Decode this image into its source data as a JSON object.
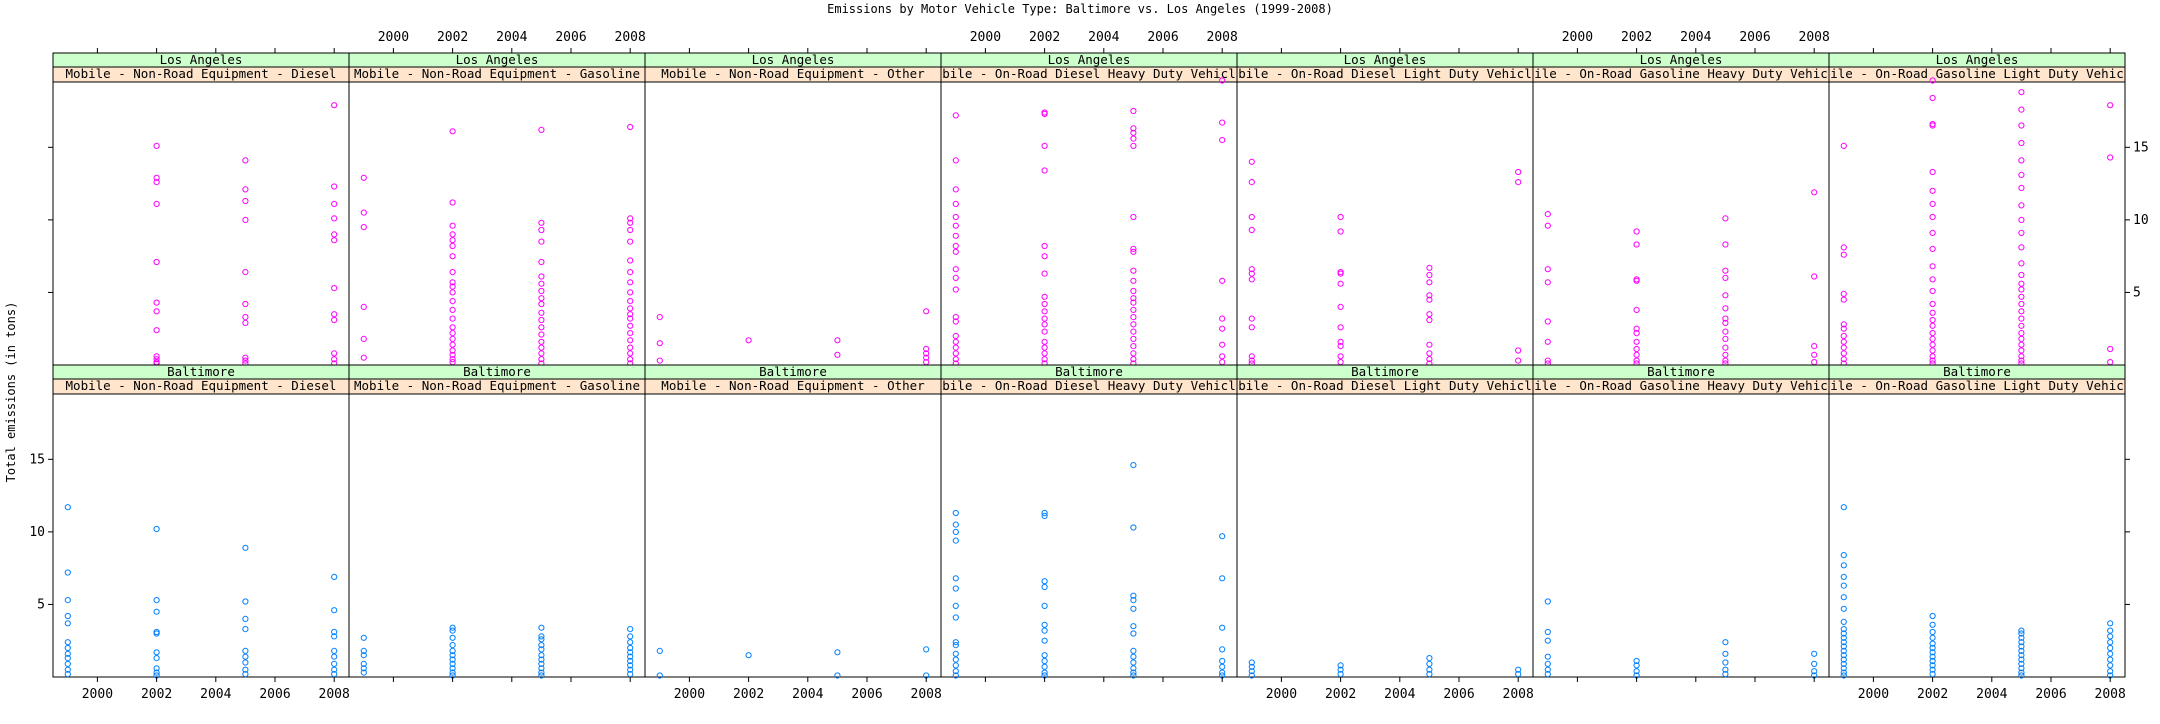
{
  "chart_data": {
    "type": "scatter",
    "title": "Emissions by Motor Vehicle Type:  Baltimore vs. Los Angeles (1999-2008)",
    "xlabel": "",
    "ylabel": "Total emissions (in tons)",
    "xlim": [
      1998.5,
      2008.5
    ],
    "ylim": [
      0,
      19.5
    ],
    "x_ticks": [
      2000,
      2002,
      2004,
      2006,
      2008
    ],
    "y_ticks": [
      5,
      10,
      15
    ],
    "grid": false,
    "legend": "none",
    "colors": {
      "Los Angeles": "#ff00ff",
      "Baltimore": "#0080ff",
      "strip_city": "#ccffcc",
      "strip_type": "#ffe5cc"
    },
    "rows": [
      {
        "city": "Los Angeles",
        "panels": [
          {
            "type": "Mobile - Non-Road Equipment - Diesel",
            "points": {
              "1999": [],
              "2002": [
                15.1,
                12.9,
                12.6,
                11.1,
                7.1,
                4.3,
                3.7,
                2.4,
                0.6,
                0.4,
                0.2,
                0.1
              ],
              "2005": [
                14.1,
                12.1,
                11.3,
                10.0,
                6.4,
                4.2,
                3.3,
                2.9,
                0.5,
                0.3,
                0.1
              ],
              "2008": [
                17.9,
                12.3,
                11.1,
                10.1,
                9.0,
                8.6,
                5.3,
                3.5,
                3.1,
                0.8,
                0.4,
                0.1
              ]
            }
          },
          {
            "type": "Mobile - Non-Road Equipment - Gasoline",
            "points": {
              "1999": [
                12.9,
                10.5,
                9.5,
                4.0,
                1.8,
                0.5
              ],
              "2002": [
                16.1,
                11.2,
                9.6,
                9.0,
                8.6,
                8.2,
                7.5,
                6.4,
                5.7,
                5.4,
                5.0,
                4.4,
                3.8,
                3.2,
                2.6,
                2.2,
                1.8,
                1.4,
                1.0,
                0.7,
                0.4,
                0.2
              ],
              "2005": [
                16.2,
                9.8,
                9.3,
                8.5,
                7.1,
                6.1,
                5.6,
                5.1,
                4.6,
                4.2,
                3.6,
                3.1,
                2.6,
                2.1,
                1.6,
                1.2,
                0.8,
                0.4,
                0.1
              ],
              "2008": [
                16.4,
                10.1,
                9.8,
                9.3,
                8.5,
                7.2,
                6.4,
                5.7,
                5.0,
                4.4,
                3.9,
                3.5,
                3.2,
                2.7,
                2.2,
                1.7,
                1.2,
                0.8,
                0.4,
                0.1
              ]
            }
          },
          {
            "type": "Mobile - Non-Road Equipment - Other",
            "points": {
              "1999": [
                3.3,
                1.5,
                0.3
              ],
              "2002": [
                1.7
              ],
              "2005": [
                1.7,
                0.7
              ],
              "2008": [
                3.7,
                1.1,
                0.8,
                0.5,
                0.2
              ]
            }
          },
          {
            "type": "Mobile - On-Road Diesel Heavy Duty Vehicles",
            "points": {
              "1999": [
                17.2,
                14.1,
                12.1,
                11.1,
                10.2,
                9.6,
                8.9,
                8.2,
                7.8,
                6.6,
                6.0,
                5.2,
                3.3,
                3.0,
                2.0,
                1.6,
                1.2,
                0.8,
                0.4,
                0.1
              ],
              "2002": [
                17.4,
                17.3,
                15.1,
                13.4,
                8.2,
                7.5,
                6.3,
                4.7,
                4.2,
                3.7,
                3.2,
                2.8,
                2.3,
                1.6,
                1.2,
                0.8,
                0.4,
                0.1
              ],
              "2005": [
                17.5,
                16.3,
                16.0,
                15.6,
                15.1,
                10.2,
                8.0,
                7.8,
                6.5,
                5.8,
                5.1,
                4.6,
                4.3,
                3.8,
                3.3,
                2.8,
                2.3,
                1.8,
                1.3,
                0.8,
                0.4,
                0.1
              ],
              "2008": [
                19.6,
                16.7,
                15.5,
                5.8,
                3.2,
                2.5,
                1.4,
                0.6,
                0.2
              ]
            }
          },
          {
            "type": "Mobile - On-Road Diesel Light Duty Vehicles",
            "points": {
              "1999": [
                14.0,
                12.6,
                10.2,
                9.3,
                6.6,
                6.3,
                5.9,
                3.2,
                2.6,
                0.6,
                0.3,
                0.1
              ],
              "2002": [
                10.2,
                9.2,
                6.4,
                6.3,
                5.6,
                4.0,
                2.6,
                1.6,
                1.3,
                0.6,
                0.2
              ],
              "2005": [
                6.7,
                6.2,
                5.7,
                4.8,
                4.5,
                3.5,
                3.1,
                1.4,
                0.8,
                0.4,
                0.1
              ],
              "2008": [
                13.3,
                12.6,
                1.0,
                0.3
              ]
            }
          },
          {
            "type": "Mobile - On-Road Gasoline Heavy Duty Vehicles",
            "points": {
              "1999": [
                10.4,
                9.6,
                6.6,
                5.7,
                3.0,
                1.6,
                0.3,
                0.1
              ],
              "2002": [
                9.2,
                8.3,
                5.9,
                5.8,
                3.8,
                2.5,
                2.2,
                1.6,
                1.1,
                0.7,
                0.3,
                0.1
              ],
              "2005": [
                10.1,
                8.3,
                6.5,
                6.0,
                4.8,
                3.9,
                3.2,
                2.9,
                2.3,
                1.8,
                1.2,
                0.7,
                0.3,
                0.1
              ],
              "2008": [
                11.9,
                6.1,
                1.3,
                0.7,
                0.2
              ]
            }
          },
          {
            "type": "Mobile - On-Road Gasoline Light Duty Vehicles",
            "points": {
              "1999": [
                15.1,
                8.1,
                7.6,
                4.9,
                4.5,
                2.8,
                2.5,
                2.0,
                1.6,
                1.2,
                0.8,
                0.4,
                0.1
              ],
              "2002": [
                19.6,
                18.4,
                16.6,
                16.5,
                13.3,
                12.0,
                11.1,
                10.2,
                9.1,
                8.0,
                6.8,
                5.9,
                5.1,
                4.2,
                3.6,
                3.1,
                2.7,
                2.2,
                1.8,
                1.4,
                1.0,
                0.6,
                0.3,
                0.1
              ],
              "2005": [
                18.8,
                17.6,
                16.5,
                15.3,
                14.1,
                13.1,
                12.2,
                11.0,
                10.0,
                9.1,
                8.1,
                7.0,
                6.2,
                5.6,
                5.2,
                4.7,
                4.2,
                3.7,
                3.2,
                2.7,
                2.2,
                1.8,
                1.4,
                1.0,
                0.6,
                0.3,
                0.1
              ],
              "2008": [
                17.9,
                14.3,
                1.1,
                0.2
              ]
            }
          }
        ]
      },
      {
        "city": "Baltimore",
        "panels": [
          {
            "type": "Mobile - Non-Road Equipment - Diesel",
            "points": {
              "1999": [
                11.7,
                7.2,
                5.3,
                4.2,
                3.7,
                2.4,
                2.0,
                1.6,
                1.3,
                0.9,
                0.5,
                0.2
              ],
              "2002": [
                10.2,
                5.3,
                4.5,
                3.1,
                3.0,
                1.7,
                1.3,
                0.6,
                0.3,
                0.1
              ],
              "2005": [
                8.9,
                5.2,
                4.0,
                3.3,
                1.8,
                1.4,
                1.0,
                0.5,
                0.2
              ],
              "2008": [
                6.9,
                4.6,
                3.1,
                2.8,
                1.8,
                1.4,
                0.9,
                0.5,
                0.2
              ]
            }
          },
          {
            "type": "Mobile - Non-Road Equipment - Gasoline",
            "points": {
              "1999": [
                2.7,
                1.8,
                1.5,
                0.9,
                0.6,
                0.3
              ],
              "2002": [
                3.4,
                3.2,
                2.7,
                2.2,
                1.8,
                1.5,
                1.2,
                0.9,
                0.6,
                0.3,
                0.1
              ],
              "2005": [
                3.4,
                2.8,
                2.6,
                2.2,
                1.9,
                1.5,
                1.2,
                0.9,
                0.6,
                0.3,
                0.1
              ],
              "2008": [
                3.3,
                2.8,
                2.4,
                2.0,
                1.7,
                1.4,
                1.1,
                0.8,
                0.5,
                0.2
              ]
            }
          },
          {
            "type": "Mobile - Non-Road Equipment - Other",
            "points": {
              "1999": [
                1.8,
                0.1
              ],
              "2002": [
                1.5
              ],
              "2005": [
                1.7,
                0.1
              ],
              "2008": [
                1.9,
                0.1
              ]
            }
          },
          {
            "type": "Mobile - On-Road Diesel Heavy Duty Vehicles",
            "points": {
              "1999": [
                11.3,
                10.5,
                10.0,
                9.4,
                6.8,
                6.1,
                4.9,
                4.1,
                2.4,
                2.2,
                1.6,
                1.2,
                0.8,
                0.4,
                0.1
              ],
              "2002": [
                11.3,
                11.1,
                6.6,
                6.2,
                4.9,
                3.6,
                3.2,
                2.5,
                1.5,
                1.1,
                0.7,
                0.3,
                0.1
              ],
              "2005": [
                14.6,
                10.3,
                5.6,
                5.3,
                4.7,
                3.5,
                3.0,
                1.8,
                1.4,
                1.0,
                0.6,
                0.3,
                0.1
              ],
              "2008": [
                9.7,
                6.8,
                3.4,
                1.9,
                1.1,
                0.7,
                0.3,
                0.1
              ]
            }
          },
          {
            "type": "Mobile - On-Road Diesel Light Duty Vehicles",
            "points": {
              "1999": [
                1.0,
                0.7,
                0.4,
                0.1
              ],
              "2002": [
                0.8,
                0.5,
                0.2
              ],
              "2005": [
                1.3,
                0.9,
                0.5,
                0.2
              ],
              "2008": [
                0.5,
                0.2
              ]
            }
          },
          {
            "type": "Mobile - On-Road Gasoline Heavy Duty Vehicles",
            "points": {
              "1999": [
                5.2,
                3.1,
                2.5,
                1.4,
                0.9,
                0.5,
                0.2
              ],
              "2002": [
                1.1,
                0.8,
                0.4,
                0.1
              ],
              "2005": [
                2.4,
                1.6,
                1.0,
                0.5,
                0.2
              ],
              "2008": [
                1.6,
                0.9,
                0.4,
                0.1
              ]
            }
          },
          {
            "type": "Mobile - On-Road Gasoline Light Duty Vehicles",
            "points": {
              "1999": [
                11.7,
                8.4,
                7.7,
                6.9,
                6.3,
                5.5,
                4.7,
                3.8,
                3.3,
                3.0,
                2.7,
                2.4,
                2.1,
                1.8,
                1.5,
                1.2,
                0.9,
                0.6,
                0.3,
                0.1
              ],
              "2002": [
                4.2,
                3.6,
                3.1,
                2.7,
                2.3,
                2.0,
                1.7,
                1.4,
                1.1,
                0.8,
                0.5,
                0.2
              ],
              "2005": [
                3.2,
                3.0,
                2.7,
                2.4,
                2.1,
                1.8,
                1.5,
                1.2,
                0.9,
                0.6,
                0.3,
                0.1
              ],
              "2008": [
                3.7,
                3.2,
                2.8,
                2.4,
                2.0,
                1.6,
                1.2,
                0.8,
                0.4,
                0.1
              ]
            }
          }
        ]
      }
    ]
  }
}
